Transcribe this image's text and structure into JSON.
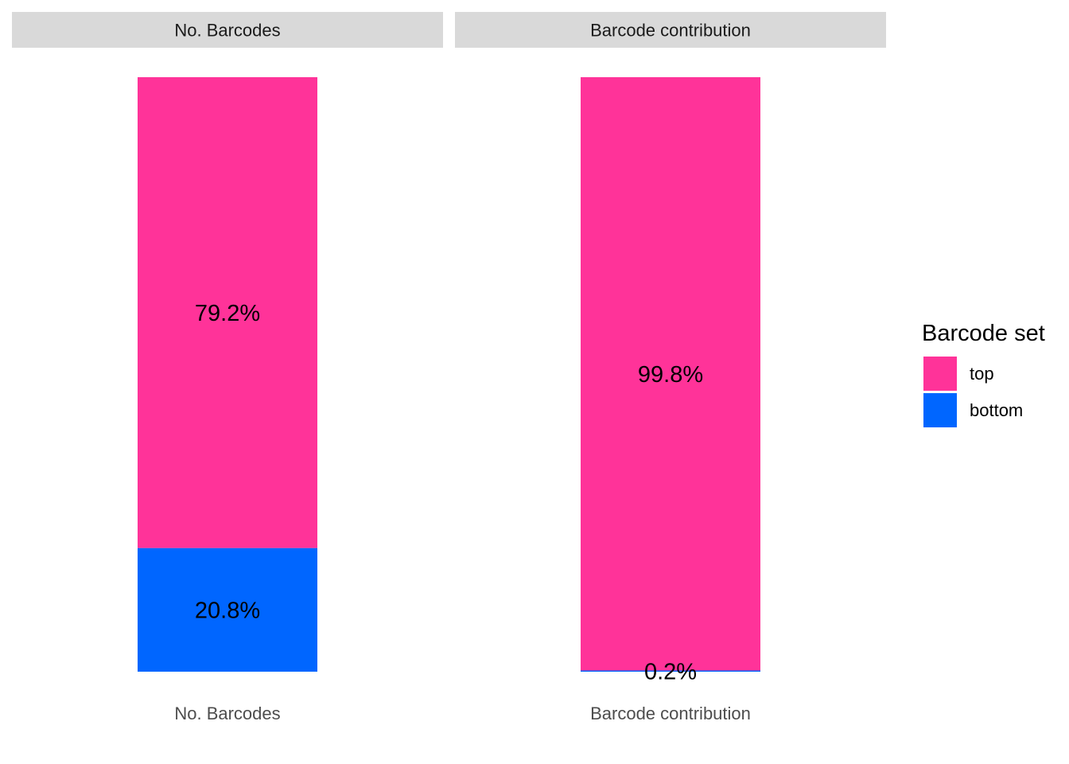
{
  "chart_data": {
    "type": "bar",
    "stacked": true,
    "facets": [
      {
        "strip": "No. Barcodes",
        "category": "No. Barcodes",
        "segments": [
          {
            "series": "bottom",
            "value": 20.8,
            "label": "20.8%"
          },
          {
            "series": "top",
            "value": 79.2,
            "label": "79.2%"
          }
        ]
      },
      {
        "strip": "Barcode contribution",
        "category": "Barcode contribution",
        "segments": [
          {
            "series": "bottom",
            "value": 0.2,
            "label": "0.2%"
          },
          {
            "series": "top",
            "value": 99.8,
            "label": "99.8%"
          }
        ]
      }
    ],
    "ylim": [
      0,
      100
    ],
    "grid": false,
    "legend": {
      "title": "Barcode set",
      "position": "right",
      "entries": [
        {
          "name": "top",
          "color": "#FF3399"
        },
        {
          "name": "bottom",
          "color": "#0066FF"
        }
      ]
    }
  },
  "colors": {
    "top": "#FF3399",
    "bottom": "#0066FF",
    "strip_background": "#D9D9D9"
  }
}
